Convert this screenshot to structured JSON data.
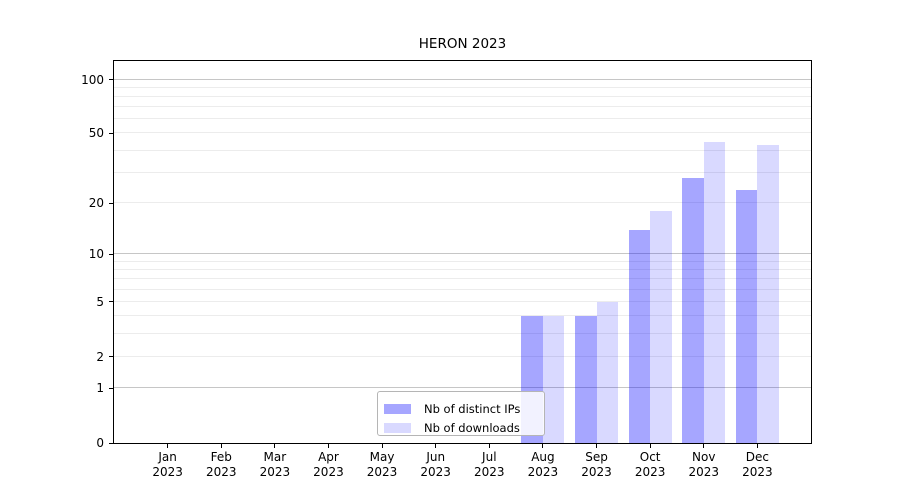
{
  "chart_data": {
    "type": "bar",
    "title": "HERON 2023",
    "xlabel": "",
    "ylabel": "",
    "categories": [
      "Jan 2023",
      "Feb 2023",
      "Mar 2023",
      "Apr 2023",
      "May 2023",
      "Jun 2023",
      "Jul 2023",
      "Aug 2023",
      "Sep 2023",
      "Oct 2023",
      "Nov 2023",
      "Dec 2023"
    ],
    "series": [
      {
        "name": "Nb of distinct IPs",
        "color": "#0000ff",
        "alpha": 0.35,
        "solid_color": "#a6a6ff",
        "values": [
          0,
          0,
          0,
          0,
          0,
          0,
          0,
          4,
          4,
          14,
          28,
          24
        ]
      },
      {
        "name": "Nb of downloads",
        "color": "#0000ff",
        "alpha": 0.15,
        "solid_color": "#d9d9ff",
        "values": [
          0,
          0,
          0,
          0,
          0,
          0,
          0,
          4,
          5,
          18,
          45,
          43
        ]
      }
    ],
    "yscale": "log1p",
    "ylim": [
      0,
      127
    ],
    "yticks": [
      0,
      1,
      2,
      5,
      10,
      20,
      50,
      100
    ],
    "major_gridlines": [
      1,
      10,
      100
    ],
    "minor_gridlines": [
      2,
      3,
      4,
      5,
      6,
      7,
      8,
      9,
      20,
      30,
      40,
      50,
      60,
      70,
      80,
      90
    ],
    "grid": true,
    "legend": {
      "position": "lower-center",
      "entries": [
        "Nb of distinct IPs",
        "Nb of downloads"
      ]
    }
  },
  "colors": {
    "background": "#ffffff",
    "axis": "#000000",
    "grid_major": "#c6c6c6",
    "grid_minor": "#ececec",
    "legend_border": "#b5b5b5",
    "text": "#000000"
  }
}
